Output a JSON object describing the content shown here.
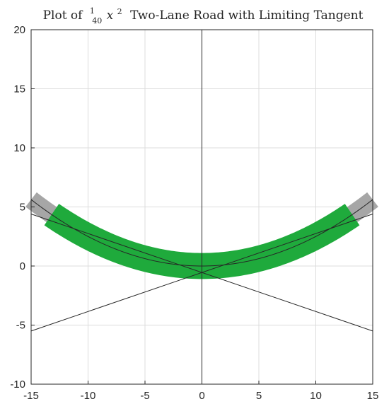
{
  "chart_data": {
    "type": "line",
    "title_prefix": "Plot of",
    "title_frac_num": "1",
    "title_frac_den": "40",
    "title_var": "x",
    "title_exp": "2",
    "title_suffix": "Two-Lane Road with Limiting Tangent",
    "xlabel": "",
    "ylabel": "",
    "xlim": [
      -15,
      15
    ],
    "ylim": [
      -10,
      20
    ],
    "x_ticks": [
      -15,
      -10,
      -5,
      0,
      5,
      10,
      15
    ],
    "y_ticks": [
      -10,
      -5,
      0,
      5,
      10,
      15,
      20
    ],
    "grid": true,
    "axes_through_origin": true,
    "series": [
      {
        "kind": "parabola-band",
        "coef": 0.025,
        "offset": 0,
        "x_range": [
          -15,
          15
        ],
        "thickness": 0.7,
        "color": "#a6a6a6"
      },
      {
        "kind": "parabola-band",
        "coef": 0.025,
        "offset": 0,
        "x_range": [
          -13.2,
          13.2
        ],
        "thickness": 1.0,
        "color": "#1faa3c"
      },
      {
        "kind": "parabola-line",
        "coef": 0.025,
        "offset": 0,
        "x_range": [
          -15,
          15
        ],
        "color": "#262626"
      },
      {
        "kind": "line",
        "points": [
          [
            -15,
            4.4
          ],
          [
            15,
            -5.5
          ]
        ],
        "color": "#262626"
      },
      {
        "kind": "line",
        "points": [
          [
            -15,
            -5.5
          ],
          [
            15,
            4.4
          ]
        ],
        "color": "#262626"
      }
    ],
    "colors": {
      "axis": "#262626",
      "grid": "#dcdcdc",
      "zero_line": "#262626"
    }
  }
}
